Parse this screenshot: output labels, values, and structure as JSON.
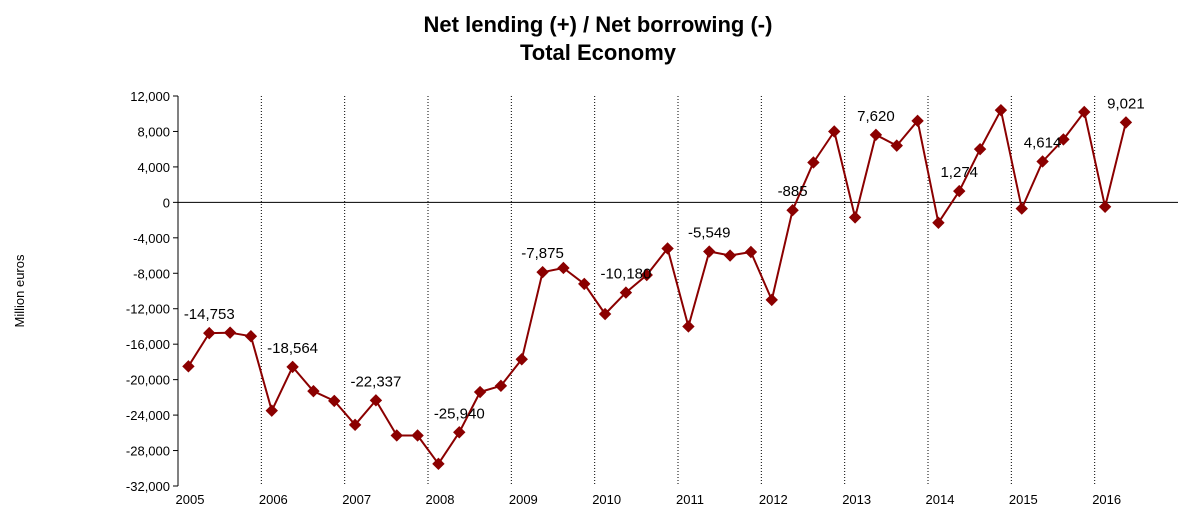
{
  "chart_data": {
    "type": "line",
    "title": "Net lending (+) / Net borrowing (-)",
    "subtitle": "Total Economy",
    "ylabel": "Million euros",
    "xlabel": "",
    "ylim": [
      -32000,
      12000
    ],
    "yticks": [
      12000,
      8000,
      4000,
      0,
      -4000,
      -8000,
      -12000,
      -16000,
      -20000,
      -24000,
      -28000,
      -32000
    ],
    "ytick_labels": [
      "12,000",
      "8,000",
      "4,000",
      "0",
      "-4,000",
      "-8,000",
      "-12,000",
      "-16,000",
      "-20,000",
      "-24,000",
      "-28,000",
      "-32,000"
    ],
    "years": [
      "2005",
      "2006",
      "2007",
      "2008",
      "2009",
      "2010",
      "2011",
      "2012",
      "2013",
      "2014",
      "2015",
      "2016"
    ],
    "grid": "vertical dotted lines at year boundaries",
    "series": [
      {
        "color": "#8b0000",
        "marker": "diamond",
        "quarters": [
          "2005Q1",
          "2005Q2",
          "2005Q3",
          "2005Q4",
          "2006Q1",
          "2006Q2",
          "2006Q3",
          "2006Q4",
          "2007Q1",
          "2007Q2",
          "2007Q3",
          "2007Q4",
          "2008Q1",
          "2008Q2",
          "2008Q3",
          "2008Q4",
          "2009Q1",
          "2009Q2",
          "2009Q3",
          "2009Q4",
          "2010Q1",
          "2010Q2",
          "2010Q3",
          "2010Q4",
          "2011Q1",
          "2011Q2",
          "2011Q3",
          "2011Q4",
          "2012Q1",
          "2012Q2",
          "2012Q3",
          "2012Q4",
          "2013Q1",
          "2013Q2",
          "2013Q3",
          "2013Q4",
          "2014Q1",
          "2014Q2",
          "2014Q3",
          "2014Q4",
          "2015Q1",
          "2015Q2",
          "2015Q3",
          "2015Q4",
          "2016Q1",
          "2016Q2"
        ],
        "values": [
          -18500,
          -14753,
          -14700,
          -15100,
          -23500,
          -18564,
          -21300,
          -22400,
          -25100,
          -22337,
          -26300,
          -26300,
          -29500,
          -25940,
          -21400,
          -20700,
          -17700,
          -7875,
          -7400,
          -9200,
          -12600,
          -10180,
          -8200,
          -5200,
          -14000,
          -5549,
          -6000,
          -5600,
          -11000,
          -885,
          4500,
          8000,
          -1700,
          7620,
          6400,
          9200,
          -2300,
          1274,
          6000,
          10400,
          -700,
          4614,
          7100,
          10200,
          -500,
          9021
        ]
      }
    ],
    "data_labels": [
      {
        "quarter": "2005Q2",
        "text": "-14,753"
      },
      {
        "quarter": "2006Q2",
        "text": "-18,564"
      },
      {
        "quarter": "2007Q2",
        "text": "-22,337"
      },
      {
        "quarter": "2008Q2",
        "text": "-25,940"
      },
      {
        "quarter": "2009Q2",
        "text": "-7,875"
      },
      {
        "quarter": "2010Q2",
        "text": "-10,180"
      },
      {
        "quarter": "2011Q2",
        "text": "-5,549"
      },
      {
        "quarter": "2012Q2",
        "text": "-885"
      },
      {
        "quarter": "2013Q2",
        "text": "7,620"
      },
      {
        "quarter": "2014Q2",
        "text": "1,274"
      },
      {
        "quarter": "2015Q2",
        "text": "4,614"
      },
      {
        "quarter": "2016Q2",
        "text": "9,021"
      }
    ]
  }
}
